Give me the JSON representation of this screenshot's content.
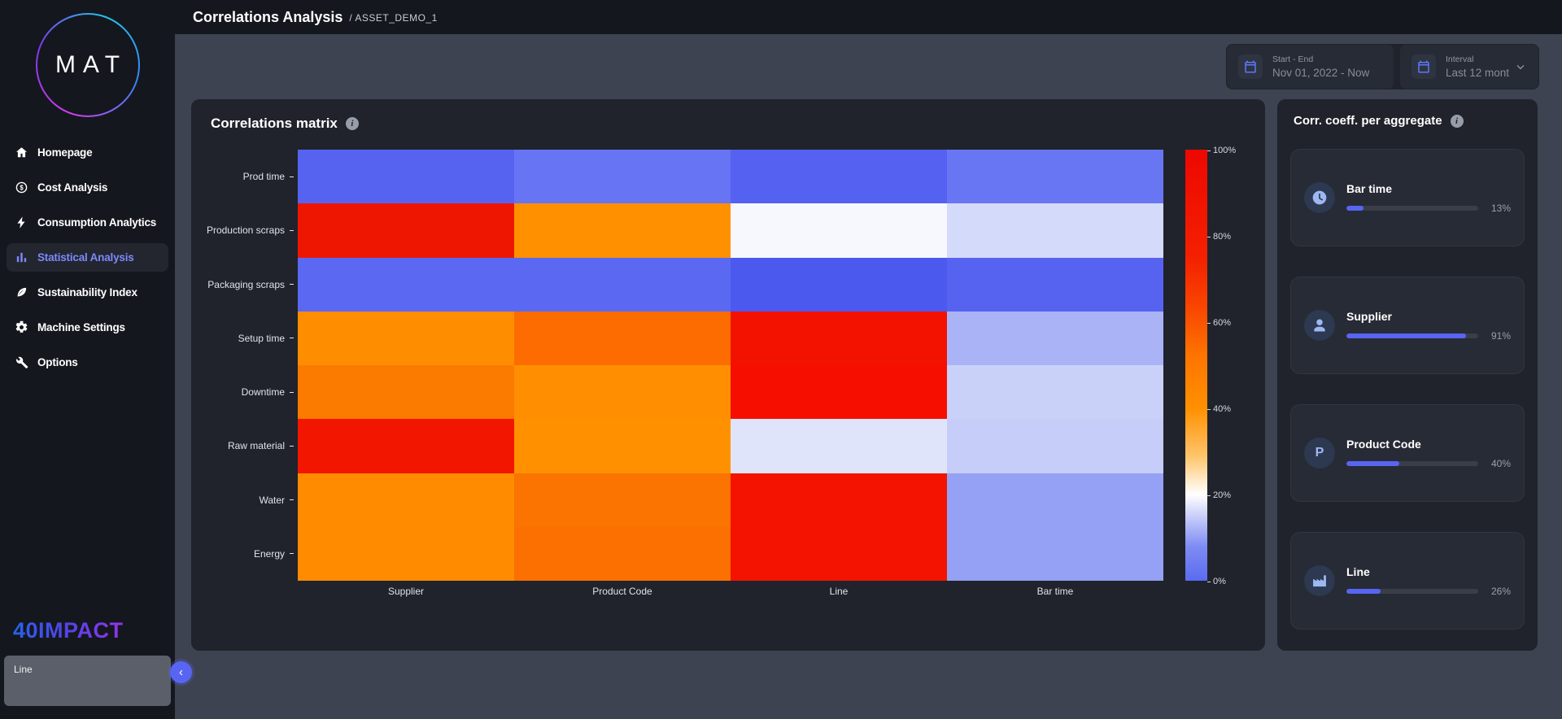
{
  "app": {
    "logo_text": "MAT",
    "footer_logo_text": "40IMPACT"
  },
  "header": {
    "title": "Correlations Analysis",
    "breadcrumb": "/ ASSET_DEMO_1"
  },
  "filters": {
    "start_end": {
      "label": "Start - End",
      "value": "Nov 01, 2022 - Now",
      "icon": "calendar-icon"
    },
    "interval": {
      "label": "Interval",
      "value": "Last 12 mont",
      "icon": "calendar-icon"
    }
  },
  "sidebar": {
    "items": [
      {
        "label": "Homepage",
        "icon": "home-icon",
        "active": false
      },
      {
        "label": "Cost Analysis",
        "icon": "cost-icon",
        "active": false
      },
      {
        "label": "Consumption Analytics",
        "icon": "lightning-icon",
        "active": false
      },
      {
        "label": "Statistical Analysis",
        "icon": "bar-chart-icon",
        "active": true
      },
      {
        "label": "Sustainability Index",
        "icon": "leaf-icon",
        "active": false
      },
      {
        "label": "Machine Settings",
        "icon": "gear-icon",
        "active": false
      },
      {
        "label": "Options",
        "icon": "wrench-icon",
        "active": false
      }
    ],
    "tooltip_text": "Line",
    "collapse_glyph": "‹"
  },
  "matrix_card": {
    "title": "Correlations matrix"
  },
  "aggregates_panel": {
    "title": "Corr. coeff. per aggregate",
    "cards": [
      {
        "label": "Bar time",
        "value": "13%",
        "percent": 13,
        "icon": "clock-icon"
      },
      {
        "label": "Supplier",
        "value": "91%",
        "percent": 91,
        "icon": "person-icon"
      },
      {
        "label": "Product Code",
        "value": "40%",
        "percent": 40,
        "icon": "letter-p-icon",
        "icon_glyph": "P"
      },
      {
        "label": "Line",
        "value": "26%",
        "percent": 26,
        "icon": "factory-icon"
      }
    ]
  },
  "chart_data": {
    "type": "heatmap",
    "title": "Correlations matrix",
    "x_categories": [
      "Supplier",
      "Product Code",
      "Line",
      "Bar time"
    ],
    "y_categories": [
      "Prod time",
      "Production scraps",
      "Packaging scraps",
      "Setup time",
      "Downtime",
      "Raw material",
      "Water",
      "Energy"
    ],
    "values_percent": [
      [
        4,
        7,
        4,
        8
      ],
      [
        82,
        41,
        21,
        16
      ],
      [
        5,
        5,
        2,
        4
      ],
      [
        42,
        51,
        71,
        12
      ],
      [
        49,
        42,
        73,
        15
      ],
      [
        77,
        41,
        19,
        15
      ],
      [
        42,
        53,
        70,
        10
      ],
      [
        42,
        54,
        70,
        10
      ]
    ],
    "cell_colors": [
      [
        "#5663f1",
        "#6774f3",
        "#5461f1",
        "#6976f3"
      ],
      [
        "#ee1600",
        "#ff9000",
        "#f7f8fe",
        "#d4daf9"
      ],
      [
        "#5b68f1",
        "#5b68f1",
        "#4b59ef",
        "#5663f1"
      ],
      [
        "#ff8d00",
        "#fc6c00",
        "#f31200",
        "#a9b3f6"
      ],
      [
        "#fb7a00",
        "#ff8f00",
        "#f60f00",
        "#cad1f8"
      ],
      [
        "#f21500",
        "#ff9100",
        "#e0e4fb",
        "#c6cdf8"
      ],
      [
        "#ff8c00",
        "#fb7300",
        "#f31300",
        "#94a1f4"
      ],
      [
        "#ff8c00",
        "#fb7000",
        "#f31300",
        "#94a1f4"
      ]
    ],
    "colorbar": {
      "min": 0,
      "max": 100,
      "tick_labels": [
        "0%",
        "20%",
        "40%",
        "60%",
        "80%",
        "100%"
      ],
      "gradient_stops": [
        {
          "color": "#5b6bf0",
          "pos": 0
        },
        {
          "color": "#7f8cf3",
          "pos": 8
        },
        {
          "color": "#c9cff9",
          "pos": 15
        },
        {
          "color": "#ffffff",
          "pos": 20
        },
        {
          "color": "#ffc469",
          "pos": 29
        },
        {
          "color": "#ff9000",
          "pos": 40
        },
        {
          "color": "#fd7500",
          "pos": 52
        },
        {
          "color": "#f94700",
          "pos": 63
        },
        {
          "color": "#f42000",
          "pos": 75
        },
        {
          "color": "#ee0700",
          "pos": 100
        }
      ]
    },
    "legend_position": "right",
    "grid": false
  },
  "colors": {
    "accent": "#5865f2",
    "sidebar_bg": "#15171e",
    "body_bg": "#3e4352",
    "card_bg": "#20232b",
    "active_item_text": "#7c89fb",
    "progress_fill": "#5865f2"
  }
}
